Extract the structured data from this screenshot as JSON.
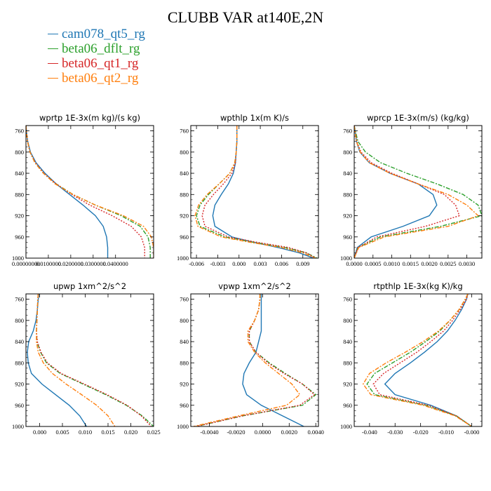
{
  "title": "CLUBB VAR at140E,2N",
  "legend": [
    {
      "name": "cam078_qt5_rg",
      "color": "#1f77b4",
      "dash": ""
    },
    {
      "name": "beta06_dflt_rg",
      "color": "#2ca02c",
      "dash": "6,2,2,2"
    },
    {
      "name": "beta06_qt1_rg",
      "color": "#d62728",
      "dash": "2,2"
    },
    {
      "name": "beta06_qt2_rg",
      "color": "#ff7f0e",
      "dash": "6,2,2,2"
    }
  ],
  "chart_data": [
    {
      "type": "line",
      "title": "wprtp  1E-3x(m kg)/(s kg)",
      "xlim": [
        0,
        5.7e-05
      ],
      "ylim": [
        1000,
        750
      ],
      "yticks": [
        760,
        800,
        840,
        880,
        920,
        960,
        1000
      ],
      "yticklabels": [
        "760",
        "800",
        "840",
        "880",
        "920",
        "960",
        "1000"
      ],
      "xticks": [
        0,
        1e-05,
        2e-05,
        3e-05,
        4e-05
      ],
      "xticklabels": [
        "0.00000000",
        "0.0100000",
        "0.0200000",
        "0.0300000",
        "0.0400000"
      ],
      "y": [
        750,
        760,
        780,
        800,
        820,
        840,
        860,
        880,
        900,
        920,
        940,
        960,
        980,
        1000
      ],
      "series": [
        {
          "name": "cam078_qt5_rg",
          "values": [
            0.0,
            2e-07,
            8e-07,
            2e-06,
            4.5e-06,
            8.5e-06,
            1.35e-05,
            1.95e-05,
            2.55e-05,
            3.1e-05,
            3.45e-05,
            3.6e-05,
            3.65e-05,
            3.65e-05
          ]
        },
        {
          "name": "beta06_dflt_rg",
          "values": [
            0.0,
            2e-07,
            7e-07,
            1.8e-06,
            4e-06,
            7.8e-06,
            1.35e-05,
            2.1e-05,
            3.1e-05,
            4.25e-05,
            5.1e-05,
            5.45e-05,
            5.55e-05,
            5.55e-05
          ]
        },
        {
          "name": "beta06_qt1_rg",
          "values": [
            0.0,
            2e-07,
            7e-07,
            1.8e-06,
            4.2e-06,
            8e-06,
            1.35e-05,
            2.05e-05,
            2.85e-05,
            3.85e-05,
            4.7e-05,
            5.15e-05,
            5.3e-05,
            5.3e-05
          ]
        },
        {
          "name": "beta06_qt2_rg",
          "values": [
            0.0,
            2e-07,
            7e-07,
            1.8e-06,
            4e-06,
            7.8e-06,
            1.3e-05,
            2.1e-05,
            3.1e-05,
            4.35e-05,
            5.25e-05,
            5.6e-05,
            5.7e-05,
            5.7e-05
          ]
        }
      ]
    },
    {
      "type": "line",
      "title": "wpthlp  1x(m K)/s",
      "xlim": [
        -0.0068,
        0.0112
      ],
      "ylim": [
        1000,
        750
      ],
      "yticks": [
        760,
        800,
        840,
        880,
        920,
        960,
        1000
      ],
      "yticklabels": [
        "760",
        "800",
        "840",
        "880",
        "920",
        "960",
        "1000"
      ],
      "xticks": [
        -0.006,
        -0.003,
        0,
        0.003,
        0.006,
        0.009
      ],
      "xticklabels": [
        "-0.006",
        "-0.003",
        "0.000",
        "0.003",
        "0.006",
        "0.009"
      ],
      "y": [
        750,
        760,
        780,
        800,
        820,
        840,
        860,
        880,
        900,
        920,
        940,
        960,
        970,
        980,
        990,
        1000
      ],
      "series": [
        {
          "name": "cam078_qt5_rg",
          "values": [
            -0.0003,
            -0.0003,
            -0.0003,
            -0.0004,
            -0.0005,
            -0.0008,
            -0.0015,
            -0.0025,
            -0.0034,
            -0.0037,
            -0.0034,
            -0.001,
            0.002,
            0.0055,
            0.0085,
            0.0105
          ]
        },
        {
          "name": "beta06_dflt_rg",
          "values": [
            -0.0003,
            -0.0003,
            -0.0003,
            -0.0004,
            -0.0006,
            -0.0013,
            -0.0028,
            -0.0043,
            -0.0055,
            -0.006,
            -0.0055,
            -0.002,
            0.002,
            0.0065,
            0.0095,
            0.011
          ]
        },
        {
          "name": "beta06_qt1_rg",
          "values": [
            -0.0003,
            -0.0003,
            -0.0003,
            -0.0004,
            -0.0005,
            -0.001,
            -0.0022,
            -0.0036,
            -0.0048,
            -0.0052,
            -0.0048,
            -0.0015,
            0.0025,
            0.007,
            0.0095,
            0.0108
          ]
        },
        {
          "name": "beta06_qt2_rg",
          "values": [
            -0.0003,
            -0.0003,
            -0.0003,
            -0.0004,
            -0.0006,
            -0.0013,
            -0.0028,
            -0.0045,
            -0.0057,
            -0.0062,
            -0.0058,
            -0.0025,
            0.0015,
            0.006,
            0.009,
            0.0108
          ]
        }
      ]
    },
    {
      "type": "line",
      "title": "wprcp  1E-3x(m/s) (kg/kg)",
      "xlim": [
        0,
        0.0034
      ],
      "ylim": [
        1000,
        750
      ],
      "yticks": [
        760,
        800,
        840,
        880,
        920,
        960,
        1000
      ],
      "yticklabels": [
        "760",
        "800",
        "840",
        "880",
        "920",
        "960",
        "1000"
      ],
      "xticks": [
        0,
        0.0005,
        0.001,
        0.0015,
        0.002,
        0.0025,
        0.003
      ],
      "xticklabels": [
        "0.0000",
        "0.0005",
        "0.0010",
        "0.0015",
        "0.0020",
        "0.0025",
        "0.0030"
      ],
      "y": [
        750,
        760,
        780,
        800,
        820,
        840,
        860,
        880,
        900,
        920,
        940,
        960,
        980,
        1000
      ],
      "series": [
        {
          "name": "cam078_qt5_rg",
          "values": [
            0.0,
            2e-05,
            6e-05,
            0.00015,
            0.0004,
            0.00095,
            0.0017,
            0.0021,
            0.0022,
            0.002,
            0.0013,
            0.00045,
            8e-05,
            0.0
          ],
          "extra": "peak near 905"
        },
        {
          "name": "beta06_dflt_rg",
          "values": [
            0.0,
            3e-05,
            0.0001,
            0.0003,
            0.0007,
            0.0014,
            0.0022,
            0.0029,
            0.0033,
            0.0034,
            0.0023,
            0.0007,
            0.0001,
            0.0
          ]
        },
        {
          "name": "beta06_qt1_rg",
          "values": [
            0.0,
            2e-05,
            7e-05,
            0.00018,
            0.00045,
            0.001,
            0.0017,
            0.0024,
            0.0027,
            0.0028,
            0.0019,
            0.0006,
            0.0001,
            0.0
          ]
        },
        {
          "name": "beta06_qt2_rg",
          "values": [
            0.0,
            2e-05,
            6e-05,
            0.00016,
            0.0004,
            0.00095,
            0.0017,
            0.0025,
            0.003,
            0.0033,
            0.0025,
            0.0008,
            0.00012,
            0.0
          ]
        }
      ]
    },
    {
      "type": "line",
      "title": "upwp  1xm^2/s^2",
      "xlim": [
        -0.003,
        0.025
      ],
      "ylim": [
        1000,
        750
      ],
      "yticks": [
        760,
        800,
        840,
        880,
        920,
        960,
        1000
      ],
      "yticklabels": [
        "760",
        "800",
        "840",
        "880",
        "920",
        "960",
        "1000"
      ],
      "xticks": [
        0,
        0.005,
        0.01,
        0.015,
        0.02,
        0.025
      ],
      "xticklabels": [
        "0.000",
        "0.005",
        "0.010",
        "0.015",
        "0.020",
        "0.025"
      ],
      "y": [
        750,
        760,
        780,
        800,
        820,
        840,
        860,
        880,
        900,
        920,
        940,
        960,
        980,
        1000
      ],
      "series": [
        {
          "name": "cam078_qt5_rg",
          "values": [
            -0.0002,
            -0.0003,
            -0.0005,
            -0.0008,
            -0.0014,
            -0.0024,
            -0.0027,
            -0.0025,
            -0.0018,
            0.0005,
            0.0035,
            0.0065,
            0.0088,
            0.0103
          ]
        },
        {
          "name": "beta06_dflt_rg",
          "values": [
            -0.0003,
            -0.0004,
            -0.0005,
            -0.0006,
            -0.0007,
            -0.0006,
            0.0002,
            0.0015,
            0.0045,
            0.0095,
            0.0145,
            0.019,
            0.0225,
            0.025
          ]
        },
        {
          "name": "beta06_qt1_rg",
          "values": [
            -0.0003,
            -0.0004,
            -0.0005,
            -0.0006,
            -0.0007,
            -0.0005,
            0.0003,
            0.0017,
            0.0047,
            0.0098,
            0.0148,
            0.0192,
            0.0223,
            0.0245
          ]
        },
        {
          "name": "beta06_qt2_rg",
          "values": [
            -0.0003,
            -0.0004,
            -0.0005,
            -0.0006,
            -0.0007,
            -0.0007,
            -0.0003,
            0.0008,
            0.0028,
            0.0058,
            0.0092,
            0.0125,
            0.015,
            0.0165
          ]
        }
      ]
    },
    {
      "type": "line",
      "title": "vpwp  1xm^2/s^2",
      "xlim": [
        -0.0054,
        0.0042
      ],
      "ylim": [
        1000,
        750
      ],
      "yticks": [
        760,
        800,
        840,
        880,
        920,
        960,
        1000
      ],
      "yticklabels": [
        "760",
        "800",
        "840",
        "880",
        "920",
        "960",
        "1000"
      ],
      "xticks": [
        -0.004,
        -0.002,
        0,
        0.002,
        0.004
      ],
      "xticklabels": [
        "-0.0040",
        "-0.0020",
        "0.0000",
        "0.0020",
        "0.0040"
      ],
      "y": [
        750,
        760,
        780,
        800,
        820,
        840,
        860,
        880,
        900,
        920,
        940,
        960,
        980,
        1000
      ],
      "series": [
        {
          "name": "cam078_qt5_rg",
          "values": [
            -0.0001,
            -0.0001,
            -0.0001,
            -0.0001,
            -0.0001,
            -0.0003,
            -0.0005,
            -0.001,
            -0.0014,
            -0.0015,
            -0.0012,
            -0.0001,
            0.0015,
            0.0031
          ]
        },
        {
          "name": "beta06_dflt_rg",
          "values": [
            -0.0002,
            -0.0002,
            -0.0003,
            -0.0006,
            -0.001,
            -0.001,
            -0.0005,
            0.0005,
            0.0017,
            0.003,
            0.004,
            0.003,
            -0.0015,
            -0.005
          ]
        },
        {
          "name": "beta06_qt1_rg",
          "values": [
            -0.0002,
            -0.0002,
            -0.0003,
            -0.0006,
            -0.001,
            -0.001,
            -0.0005,
            0.0004,
            0.0016,
            0.003,
            0.0039,
            0.0028,
            -0.0015,
            -0.005
          ]
        },
        {
          "name": "beta06_qt2_rg",
          "values": [
            -0.0002,
            -0.0002,
            -0.0003,
            -0.0006,
            -0.0011,
            -0.0011,
            -0.0006,
            0.0002,
            0.0012,
            0.0022,
            0.0028,
            0.0018,
            -0.0018,
            -0.0052
          ]
        }
      ]
    },
    {
      "type": "line",
      "title": "rtpthlp  1E-3x(kg K)/kg",
      "xlim": [
        -0.046,
        0.004
      ],
      "ylim": [
        1000,
        750
      ],
      "yticks": [
        760,
        800,
        840,
        880,
        920,
        960,
        1000
      ],
      "yticklabels": [
        "760",
        "800",
        "840",
        "880",
        "920",
        "960",
        "1000"
      ],
      "xticks": [
        -0.04,
        -0.03,
        -0.02,
        -0.01,
        0
      ],
      "xticklabels": [
        "-0.040",
        "-0.030",
        "-0.020",
        "-0.010",
        "-0.000"
      ],
      "y": [
        750,
        760,
        780,
        800,
        820,
        840,
        860,
        880,
        900,
        920,
        940,
        960,
        980,
        1000
      ],
      "series": [
        {
          "name": "cam078_qt5_rg",
          "values": [
            -0.0015,
            -0.002,
            -0.004,
            -0.0065,
            -0.0095,
            -0.0135,
            -0.0185,
            -0.024,
            -0.03,
            -0.034,
            -0.03,
            -0.016,
            -0.006,
            0.0
          ]
        },
        {
          "name": "beta06_dflt_rg",
          "values": [
            -0.0015,
            -0.0025,
            -0.005,
            -0.0085,
            -0.0125,
            -0.018,
            -0.024,
            -0.031,
            -0.038,
            -0.041,
            -0.038,
            -0.018,
            -0.006,
            0.0
          ]
        },
        {
          "name": "beta06_qt1_rg",
          "values": [
            -0.0015,
            -0.002,
            -0.0045,
            -0.0075,
            -0.011,
            -0.016,
            -0.0215,
            -0.028,
            -0.0345,
            -0.0385,
            -0.036,
            -0.017,
            -0.006,
            0.0
          ]
        },
        {
          "name": "beta06_qt2_rg",
          "values": [
            -0.0015,
            -0.0025,
            -0.005,
            -0.0085,
            -0.013,
            -0.019,
            -0.026,
            -0.0335,
            -0.04,
            -0.0425,
            -0.0395,
            -0.019,
            -0.0065,
            0.0
          ]
        }
      ]
    }
  ]
}
